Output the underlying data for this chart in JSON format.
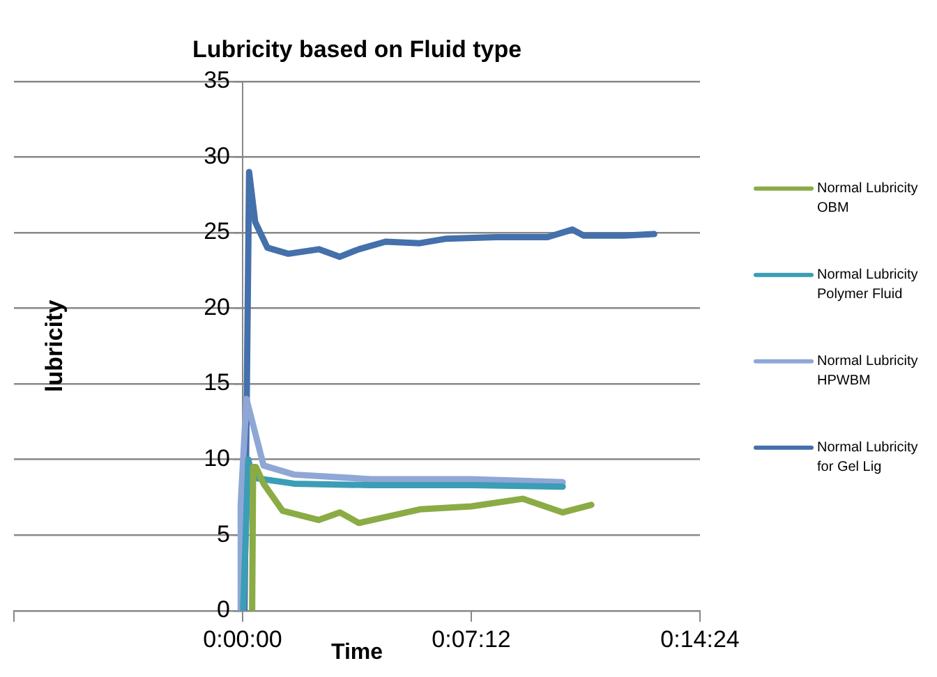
{
  "chart_data": {
    "type": "line",
    "title": "Lubricity based on Fluid type",
    "xlabel": "Time",
    "ylabel": "lubricity",
    "xlim": [
      -0.12,
      0.24
    ],
    "xticks": [
      {
        "value": -0.12,
        "label": null
      },
      {
        "value": 0,
        "label": "0:00:00"
      },
      {
        "value": 0.12,
        "label": "0:07:12"
      },
      {
        "value": 0.24,
        "label": "0:14:24"
      }
    ],
    "ylim": [
      0,
      35
    ],
    "yticks": [
      0,
      5,
      10,
      15,
      20,
      25,
      30,
      35
    ],
    "grid": "y",
    "legend": "right",
    "marker": "none",
    "line_style": "solid",
    "series": [
      {
        "name": "Normal Lubricity OBM",
        "color": "#8bab45",
        "x": [
          0.005,
          0.0055,
          0.007,
          0.011,
          0.021,
          0.04,
          0.051,
          0.061,
          0.093,
          0.12,
          0.147,
          0.168,
          0.183
        ],
        "values": [
          0,
          9.5,
          9.5,
          8.4,
          6.6,
          6.0,
          6.5,
          5.8,
          6.7,
          6.9,
          7.4,
          6.5,
          7.0
        ]
      },
      {
        "name": "Normal Lubricity Polymer Fluid",
        "color": "#3b9db6",
        "x": [
          0.0003,
          0.003,
          0.005,
          0.027,
          0.067,
          0.12,
          0.168
        ],
        "values": [
          0,
          10,
          8.8,
          8.4,
          8.3,
          8.3,
          8.2
        ]
      },
      {
        "name": "Normal Lubricity HPWBM",
        "color": "#8fa7d6",
        "x": [
          -0.001,
          -0.001,
          0.002,
          0.011,
          0.027,
          0.067,
          0.12,
          0.168
        ],
        "values": [
          0,
          7,
          14,
          9.6,
          9.0,
          8.7,
          8.7,
          8.5
        ]
      },
      {
        "name": "Normal Lubricity for Gel Lig",
        "color": "#4470ab",
        "x": [
          0.001,
          0.0034,
          0.0066,
          0.013,
          0.024,
          0.04,
          0.051,
          0.061,
          0.075,
          0.093,
          0.107,
          0.133,
          0.16,
          0.173,
          0.179,
          0.2,
          0.216
        ],
        "values": [
          0,
          29,
          25.7,
          24.0,
          23.6,
          23.9,
          23.4,
          23.9,
          24.4,
          24.3,
          24.6,
          24.7,
          24.7,
          25.2,
          24.8,
          24.8,
          24.9
        ]
      }
    ]
  }
}
